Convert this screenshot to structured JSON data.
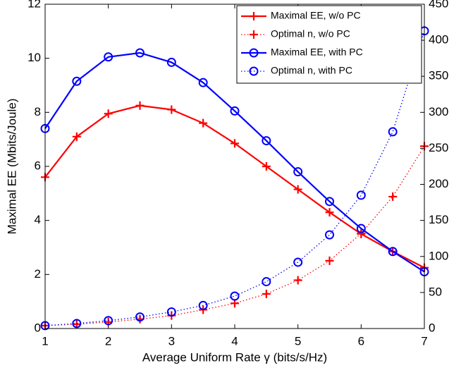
{
  "chart_data": {
    "type": "line",
    "xlabel": "Average Uniform Rate γ (bits/s/Hz)",
    "ylabel": "Maximal EE (Mbits/Joule)",
    "x": [
      1,
      1.5,
      2,
      2.5,
      3,
      3.5,
      4,
      4.5,
      5,
      5.5,
      6,
      6.5,
      7
    ],
    "xlim": [
      1,
      7
    ],
    "xticks": [
      1,
      2,
      3,
      4,
      5,
      6,
      7
    ],
    "ylim": [
      0,
      12
    ],
    "yticks": [
      0,
      2,
      4,
      6,
      8,
      10,
      12
    ],
    "y2lim": [
      0,
      450
    ],
    "y2ticks": [
      0,
      50,
      100,
      150,
      200,
      250,
      300,
      350,
      400,
      450
    ],
    "legend": "upper right",
    "grid": false,
    "series": [
      {
        "name": "Maximal EE, w/o PC",
        "color": "#ff0000",
        "linestyle": "solid",
        "marker": "plus",
        "values": [
          5.6,
          7.1,
          7.95,
          8.25,
          8.1,
          7.6,
          6.85,
          6.0,
          5.15,
          4.3,
          3.5,
          2.85,
          2.25
        ]
      },
      {
        "name": "Optimal n, w/o PC",
        "color": "#ff0000",
        "linestyle": "dotted",
        "marker": "plus",
        "axis": "y2",
        "values": [
          4,
          6,
          9,
          13,
          18,
          26,
          35,
          48,
          67,
          94,
          132,
          183,
          253
        ]
      },
      {
        "name": "Maximal EE, with PC",
        "color": "#0000ff",
        "linestyle": "solid",
        "marker": "circle",
        "values": [
          7.4,
          9.15,
          10.05,
          10.2,
          9.85,
          9.1,
          8.05,
          6.95,
          5.8,
          4.7,
          3.7,
          2.85,
          2.1
        ]
      },
      {
        "name": "Optimal n, with PC",
        "color": "#0000ff",
        "linestyle": "dotted",
        "marker": "circle",
        "axis": "y2",
        "values": [
          4,
          7,
          11,
          16,
          23,
          32,
          45,
          65,
          92,
          130,
          185,
          273,
          413
        ]
      }
    ]
  }
}
